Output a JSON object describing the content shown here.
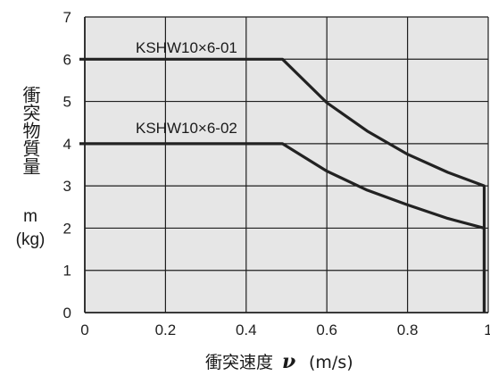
{
  "chart_data": {
    "type": "line",
    "xlim": [
      0,
      1
    ],
    "ylim": [
      0,
      7
    ],
    "x_ticks": [
      "0",
      "0.2",
      "0.4",
      "0.6",
      "0.8",
      "1"
    ],
    "y_ticks": [
      "0",
      "1",
      "2",
      "3",
      "4",
      "5",
      "6",
      "7"
    ],
    "grid": true,
    "ylabel": "衝突物質量",
    "ylabel_symbol": "m",
    "ylabel_unit": "(kg)",
    "xlabel": "衝突速度",
    "xlabel_symbol": "ν",
    "xlabel_unit": "(m/s)",
    "series": [
      {
        "name": "KSHW10×6-01",
        "x": [
          0,
          0.49,
          0.6,
          0.7,
          0.8,
          0.9,
          0.99,
          0.99
        ],
        "y": [
          6,
          6,
          4.97,
          4.3,
          3.75,
          3.32,
          3.0,
          0
        ]
      },
      {
        "name": "KSHW10×6-02",
        "x": [
          0,
          0.49,
          0.6,
          0.7,
          0.8,
          0.9,
          0.99,
          0.99
        ],
        "y": [
          4,
          4,
          3.35,
          2.9,
          2.55,
          2.23,
          2.0,
          0
        ]
      }
    ],
    "colors": {
      "grid_bg": "#e6e6e6",
      "grid_line": "#1f1f1f",
      "series_line": "#222222"
    }
  }
}
